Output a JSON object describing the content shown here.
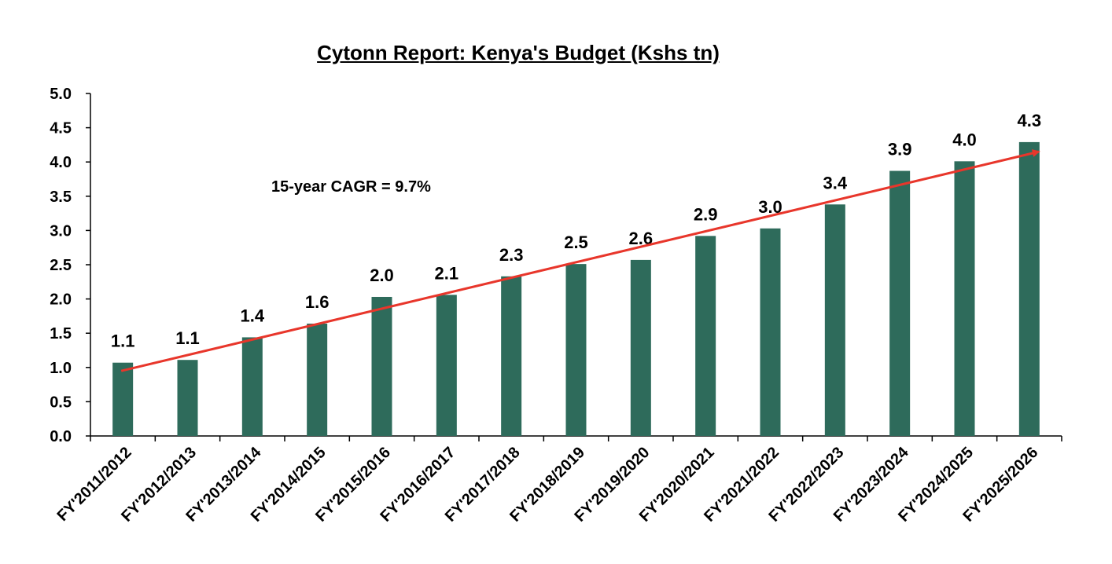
{
  "chart_data": {
    "type": "bar",
    "title": "Cytonn Report: Kenya's Budget (Kshs tn)",
    "xlabel": "",
    "ylabel": "",
    "categories": [
      "FY'2011/2012",
      "FY'2012/2013",
      "FY'2013/2014",
      "FY'2014/2015",
      "FY'2015/2016",
      "FY'2016/2017",
      "FY'2017/2018",
      "FY'2018/2019",
      "FY'2019/2020",
      "FY'2020/2021",
      "FY'2021/2022",
      "FY'2022/2023",
      "FY'2023/2024",
      "FY'2024/2025",
      "FY'2025/2026"
    ],
    "values": [
      1.07,
      1.11,
      1.44,
      1.64,
      2.03,
      2.06,
      2.33,
      2.51,
      2.57,
      2.92,
      3.03,
      3.38,
      3.87,
      4.01,
      4.29
    ],
    "data_labels": [
      "1.1",
      "1.1",
      "1.4",
      "1.6",
      "2.0",
      "2.1",
      "2.3",
      "2.5",
      "2.6",
      "2.9",
      "3.0",
      "3.4",
      "3.9",
      "4.0",
      "4.3"
    ],
    "ylim": [
      0,
      5.0
    ],
    "yticks": [
      "0.0",
      "0.5",
      "1.0",
      "1.5",
      "2.0",
      "2.5",
      "3.0",
      "3.5",
      "4.0",
      "4.5",
      "5.0"
    ],
    "grid": false,
    "legend": "none",
    "bar_color": "#2E6B5B",
    "trendline": {
      "color": "#E8362B",
      "from_value": 0.95,
      "to_value": 4.15
    },
    "annotation": "15-year CAGR = 9.7%"
  }
}
